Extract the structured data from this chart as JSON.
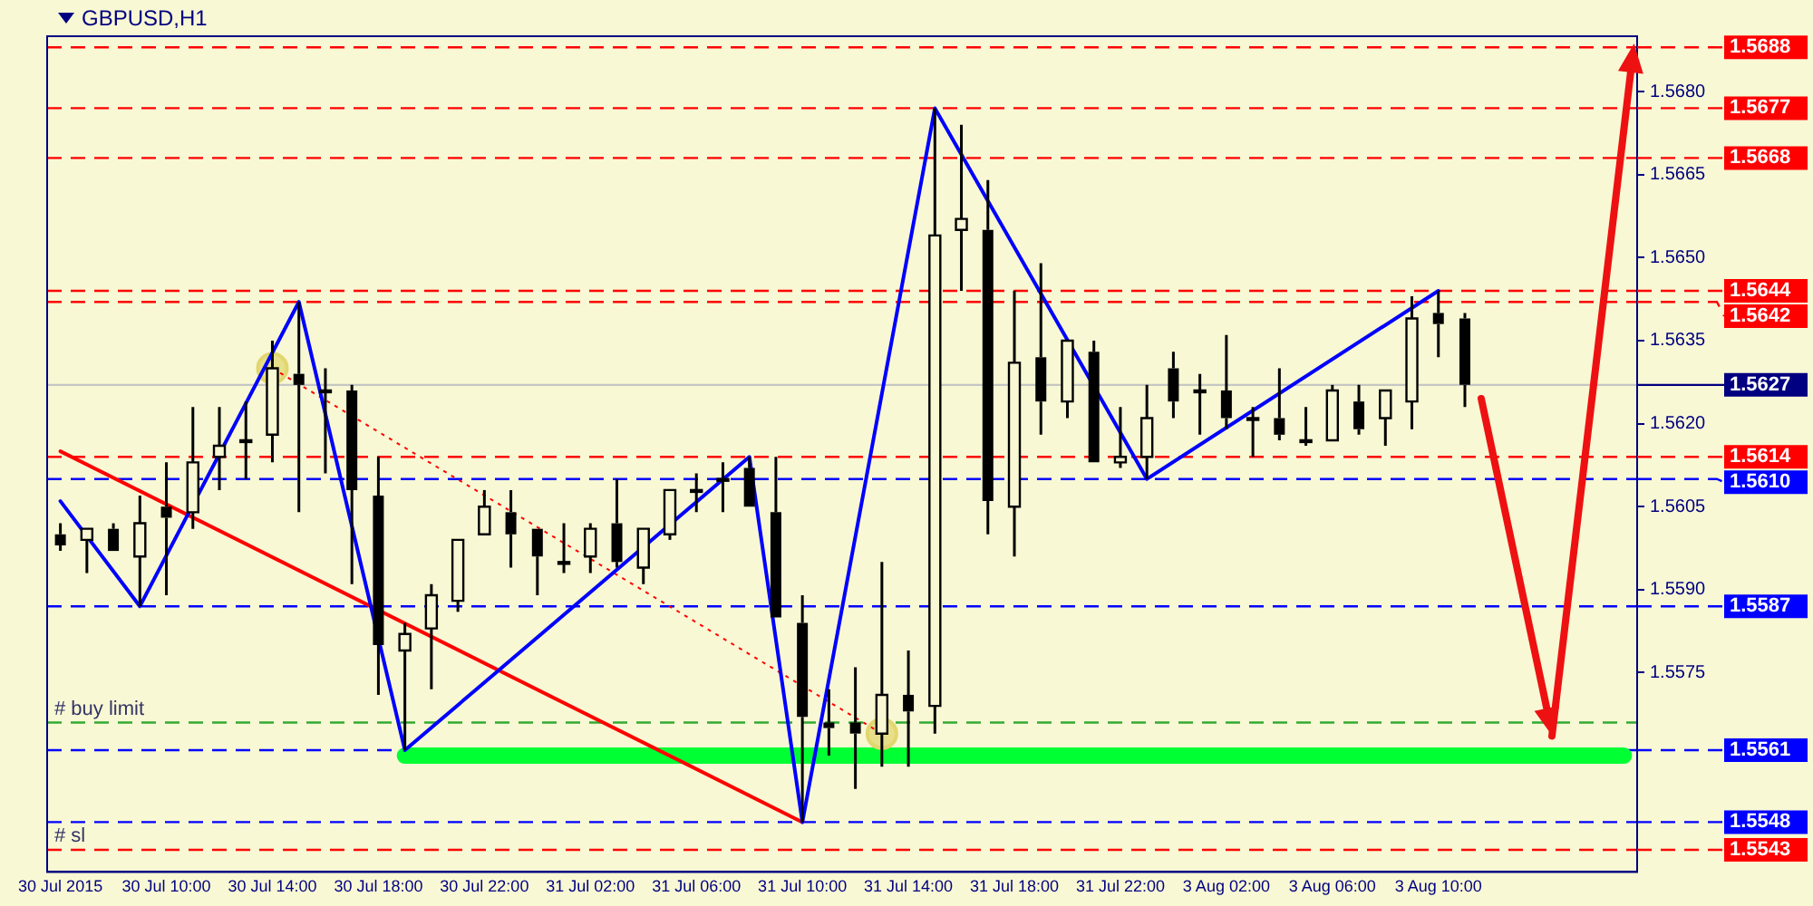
{
  "chart_data": {
    "type": "candlestick",
    "title": "GBPUSD,H1",
    "categories": [
      "30 Jul 2015",
      null,
      null,
      null,
      "30 Jul 10:00",
      null,
      null,
      null,
      "30 Jul 14:00",
      null,
      null,
      null,
      "30 Jul 18:00",
      null,
      null,
      null,
      "30 Jul 22:00",
      null,
      null,
      null,
      "31 Jul 02:00",
      null,
      null,
      null,
      "31 Jul 06:00",
      null,
      null,
      null,
      "31 Jul 10:00",
      null,
      null,
      null,
      "31 Jul 14:00",
      null,
      null,
      null,
      "31 Jul 18:00",
      null,
      null,
      null,
      "31 Jul 22:00",
      null,
      null,
      null,
      "3 Aug 02:00",
      null,
      null,
      null,
      "3 Aug 06:00",
      null,
      null,
      null,
      "3 Aug 10:00",
      null,
      null,
      null,
      null,
      null,
      null,
      null
    ],
    "ohlc": [
      [
        1.56,
        1.5602,
        1.5597,
        1.5598
      ],
      [
        1.5599,
        1.5601,
        1.5593,
        1.5601
      ],
      [
        1.5601,
        1.5602,
        1.5597,
        1.5597
      ],
      [
        1.5596,
        1.5607,
        1.5587,
        1.5602
      ],
      [
        1.5605,
        1.5613,
        1.5589,
        1.5603
      ],
      [
        1.5604,
        1.5623,
        1.5601,
        1.5613
      ],
      [
        1.5614,
        1.5623,
        1.5608,
        1.5616
      ],
      [
        1.5617,
        1.5624,
        1.561,
        1.5617
      ],
      [
        1.5618,
        1.5635,
        1.5613,
        1.563
      ],
      [
        1.5629,
        1.5642,
        1.5604,
        1.5627
      ],
      [
        1.5626,
        1.563,
        1.5611,
        1.5626
      ],
      [
        1.5626,
        1.5627,
        1.5591,
        1.5608
      ],
      [
        1.5607,
        1.5614,
        1.5571,
        1.558
      ],
      [
        1.5579,
        1.5584,
        1.5561,
        1.5582
      ],
      [
        1.5583,
        1.5591,
        1.5572,
        1.5589
      ],
      [
        1.5588,
        1.5599,
        1.5586,
        1.5599
      ],
      [
        1.56,
        1.5608,
        1.56,
        1.5605
      ],
      [
        1.5604,
        1.5608,
        1.5594,
        1.56
      ],
      [
        1.5601,
        1.5601,
        1.5589,
        1.5596
      ],
      [
        1.5595,
        1.5602,
        1.5593,
        1.5595
      ],
      [
        1.5596,
        1.5602,
        1.5593,
        1.5601
      ],
      [
        1.5602,
        1.561,
        1.5594,
        1.5595
      ],
      [
        1.5594,
        1.5601,
        1.5591,
        1.5601
      ],
      [
        1.56,
        1.5608,
        1.5599,
        1.5608
      ],
      [
        1.5608,
        1.5611,
        1.5604,
        1.5608
      ],
      [
        1.561,
        1.5613,
        1.5604,
        1.561
      ],
      [
        1.5612,
        1.5614,
        1.5605,
        1.5605
      ],
      [
        1.5604,
        1.5614,
        1.5585,
        1.5585
      ],
      [
        1.5584,
        1.5589,
        1.5548,
        1.5567
      ],
      [
        1.5566,
        1.5572,
        1.556,
        1.5565
      ],
      [
        1.5566,
        1.5576,
        1.5554,
        1.5564
      ],
      [
        1.5564,
        1.5595,
        1.5558,
        1.5571
      ],
      [
        1.5571,
        1.5579,
        1.5558,
        1.5568
      ],
      [
        1.5569,
        1.5677,
        1.5564,
        1.5654
      ],
      [
        1.5655,
        1.5674,
        1.5644,
        1.5657
      ],
      [
        1.5655,
        1.5664,
        1.56,
        1.5606
      ],
      [
        1.5605,
        1.5644,
        1.5596,
        1.5631
      ],
      [
        1.5632,
        1.5649,
        1.5618,
        1.5624
      ],
      [
        1.5624,
        1.5635,
        1.5621,
        1.5635
      ],
      [
        1.5633,
        1.5635,
        1.5613,
        1.5613
      ],
      [
        1.5613,
        1.5623,
        1.5612,
        1.5614
      ],
      [
        1.5614,
        1.5627,
        1.561,
        1.5621
      ],
      [
        1.563,
        1.5633,
        1.5621,
        1.5624
      ],
      [
        1.5626,
        1.5629,
        1.5618,
        1.5626
      ],
      [
        1.5626,
        1.5636,
        1.5619,
        1.5621
      ],
      [
        1.5621,
        1.5623,
        1.5614,
        1.5621
      ],
      [
        1.5621,
        1.563,
        1.5617,
        1.5618
      ],
      [
        1.5617,
        1.5623,
        1.5616,
        1.5617
      ],
      [
        1.5617,
        1.5627,
        1.5617,
        1.5626
      ],
      [
        1.5624,
        1.5627,
        1.5618,
        1.5619
      ],
      [
        1.5621,
        1.5626,
        1.5616,
        1.5626
      ],
      [
        1.5624,
        1.5643,
        1.5619,
        1.5639
      ],
      [
        1.564,
        1.5644,
        1.5632,
        1.5638
      ],
      [
        1.5639,
        1.564,
        1.5623,
        1.5627
      ],
      null,
      null,
      null,
      null,
      null,
      null
    ],
    "series": [
      {
        "type": "line",
        "color": "#0000ff",
        "values": [
          1.5606,
          null,
          null,
          1.5587,
          null,
          null,
          null,
          null,
          null,
          1.5642,
          null,
          null,
          null,
          1.5561,
          null,
          null,
          null,
          null,
          null,
          null,
          null,
          null,
          null,
          null,
          null,
          null,
          1.5614,
          null,
          1.5548,
          null,
          null,
          null,
          null,
          1.5677,
          null,
          null,
          null,
          null,
          null,
          null,
          null,
          1.561,
          null,
          null,
          null,
          null,
          null,
          null,
          null,
          null,
          null,
          null,
          1.5644,
          null,
          null,
          null,
          null,
          null,
          null,
          null
        ]
      },
      {
        "type": "line",
        "color": "#ff0000",
        "values": [
          1.5615,
          null,
          null,
          null,
          null,
          null,
          null,
          null,
          null,
          null,
          null,
          null,
          null,
          null,
          null,
          null,
          null,
          null,
          null,
          null,
          null,
          null,
          null,
          null,
          null,
          null,
          null,
          null,
          1.5548,
          null,
          null,
          null,
          null,
          null,
          null,
          null,
          null,
          null,
          null,
          null,
          null,
          null,
          null,
          null,
          null,
          null,
          null,
          null,
          null,
          null,
          null,
          null,
          null,
          null,
          null,
          null,
          null,
          null,
          null,
          null
        ]
      },
      {
        "type": "line",
        "color": "#ff0000",
        "line_style": "dotted",
        "values": [
          null,
          null,
          null,
          null,
          null,
          null,
          null,
          null,
          1.563,
          null,
          null,
          null,
          null,
          null,
          null,
          null,
          null,
          null,
          null,
          null,
          null,
          null,
          null,
          null,
          null,
          null,
          null,
          null,
          null,
          null,
          null,
          1.5564,
          null,
          null,
          null,
          null,
          null,
          null,
          null,
          null,
          null,
          null,
          null,
          null,
          null,
          null,
          null,
          null,
          null,
          null,
          null,
          null,
          null,
          null,
          null,
          null,
          null,
          null,
          null,
          null
        ]
      },
      {
        "type": "scatter",
        "color": "#e2d66e",
        "marker": "circle",
        "values": [
          null,
          null,
          null,
          null,
          null,
          null,
          null,
          null,
          1.563,
          null,
          null,
          null,
          null,
          null,
          null,
          null,
          null,
          null,
          null,
          null,
          null,
          null,
          null,
          null,
          null,
          null,
          null,
          null,
          null,
          null,
          null,
          1.5564,
          null,
          null,
          null,
          null,
          null,
          null,
          null,
          null,
          null,
          null,
          null,
          null,
          null,
          null,
          null,
          null,
          null,
          null,
          null,
          null,
          null,
          null,
          null,
          null,
          null,
          null,
          null,
          null
        ]
      },
      {
        "type": "line",
        "color": "#00ff33",
        "values": [
          null,
          null,
          null,
          null,
          null,
          null,
          null,
          null,
          null,
          null,
          null,
          null,
          null,
          1.556,
          1.556,
          1.556,
          1.556,
          1.556,
          1.556,
          1.556,
          1.556,
          1.556,
          1.556,
          1.556,
          1.556,
          1.556,
          1.556,
          1.556,
          1.556,
          1.556,
          1.556,
          1.556,
          1.556,
          1.556,
          1.556,
          1.556,
          1.556,
          1.556,
          1.556,
          1.556,
          1.556,
          1.556,
          1.556,
          1.556,
          1.556,
          1.556,
          1.556,
          1.556,
          1.556,
          1.556,
          1.556,
          1.556,
          1.556,
          1.556,
          1.556,
          1.556,
          1.556,
          1.556,
          1.556,
          1.556
        ]
      }
    ],
    "ylim": [
      1.5539,
      1.569
    ],
    "yticks": [
      1.5575,
      {
        "value": 1.559,
        "label": "1.5590"
      },
      1.5605,
      {
        "value": 1.562,
        "label": "1.5620"
      },
      1.5635,
      {
        "value": 1.565,
        "label": "1.5650"
      },
      1.5665,
      {
        "value": 1.568,
        "label": "1.5680"
      }
    ],
    "ref_lines": [
      {
        "axis": "y",
        "value": 1.5688,
        "label": "1.5688",
        "color": "#ff0000",
        "line_style": "dashed"
      },
      {
        "axis": "y",
        "value": 1.5677,
        "label": "1.5677",
        "color": "#ff0000",
        "line_style": "dashed"
      },
      {
        "axis": "y",
        "value": 1.5668,
        "label": "1.5668",
        "color": "#ff0000",
        "line_style": "dashed"
      },
      {
        "axis": "y",
        "value": 1.5644,
        "label": "1.5644",
        "color": "#ff0000",
        "line_style": "dashed"
      },
      {
        "axis": "y",
        "value": 1.5642,
        "label": "1.5642",
        "color": "#ff0000",
        "line_style": "dashed"
      },
      {
        "axis": "y",
        "value": 1.5627,
        "label": "1.5627",
        "color": "#000080",
        "line_style": "solid"
      },
      {
        "axis": "y",
        "value": 1.5614,
        "label": "1.5614",
        "color": "#ff0000",
        "line_style": "dashed"
      },
      {
        "axis": "y",
        "value": 1.561,
        "label": "1.5610",
        "color": "#0000ff",
        "line_style": "dashed"
      },
      {
        "axis": "y",
        "value": 1.5587,
        "label": "1.5587",
        "color": "#0000ff",
        "line_style": "dashed"
      },
      {
        "axis": "y",
        "value": 1.5566,
        "label": null,
        "color": "#33aa33",
        "line_style": "dashed"
      },
      {
        "axis": "y",
        "value": 1.5561,
        "label": "1.5561",
        "color": "#0000ff",
        "line_style": "dashed"
      },
      {
        "axis": "y",
        "value": 1.5548,
        "label": "1.5548",
        "color": "#0000ff",
        "line_style": "dashed"
      },
      {
        "axis": "y",
        "value": 1.5543,
        "label": "1.5543",
        "color": "#ff0000",
        "line_style": "dashed"
      }
    ],
    "annotations": [
      {
        "text": "# buy limit",
        "y": 1.5566
      },
      {
        "text": "# sl",
        "y": 1.5543
      }
    ],
    "grid": false,
    "legend": false
  }
}
